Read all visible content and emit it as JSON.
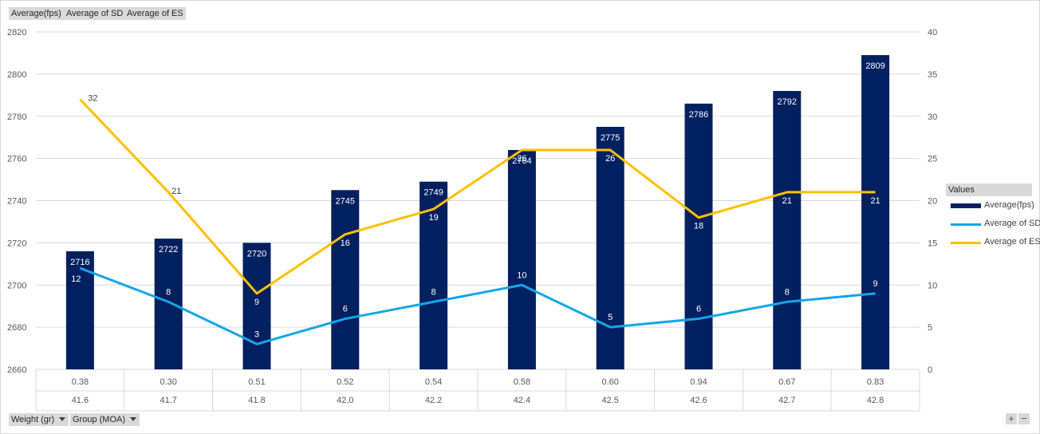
{
  "field_buttons": {
    "avg_fps": "Average(fps)",
    "avg_sd": "Average of SD",
    "avg_es": "Average of ES"
  },
  "axis_buttons": {
    "weight": "Weight (gr)",
    "group": "Group (MOA)"
  },
  "zoom": {
    "plus": "+",
    "minus": "−"
  },
  "legend": {
    "title": "Values",
    "items": [
      "Average(fps)",
      "Average of SD",
      "Average of ES"
    ]
  },
  "colors": {
    "bar": "#002060",
    "sd": "#14a6e6",
    "es": "#ffc000"
  },
  "chart_data": {
    "type": "bar",
    "categories_outer": [
      "41.6",
      "41.7",
      "41.8",
      "42.0",
      "42.2",
      "42.4",
      "42.5",
      "42.6",
      "42.7",
      "42.8"
    ],
    "categories_inner": [
      "0.38",
      "0.30",
      "0.51",
      "0.52",
      "0.54",
      "0.58",
      "0.60",
      "0.94",
      "0.67",
      "0.83"
    ],
    "y_left": {
      "min": 2660,
      "max": 2820,
      "step": 20,
      "ticks": [
        "2660",
        "2680",
        "2700",
        "2720",
        "2740",
        "2760",
        "2780",
        "2800",
        "2820"
      ]
    },
    "y_right": {
      "min": 0,
      "max": 40,
      "step": 5,
      "ticks": [
        "0",
        "5",
        "10",
        "15",
        "20",
        "25",
        "30",
        "35",
        "40"
      ]
    },
    "grid": true,
    "legend_position": "right",
    "series": [
      {
        "name": "Average(fps)",
        "type": "bar",
        "axis": "left",
        "values": [
          2716,
          2722,
          2720,
          2745,
          2749,
          2764,
          2775,
          2786,
          2792,
          2809
        ]
      },
      {
        "name": "Average of SD",
        "type": "line",
        "axis": "right",
        "values": [
          12,
          8,
          3,
          6,
          8,
          10,
          5,
          6,
          8,
          9
        ]
      },
      {
        "name": "Average of ES",
        "type": "line",
        "axis": "right",
        "values": [
          32,
          21,
          9,
          16,
          19,
          26,
          26,
          18,
          21,
          21
        ]
      }
    ]
  }
}
